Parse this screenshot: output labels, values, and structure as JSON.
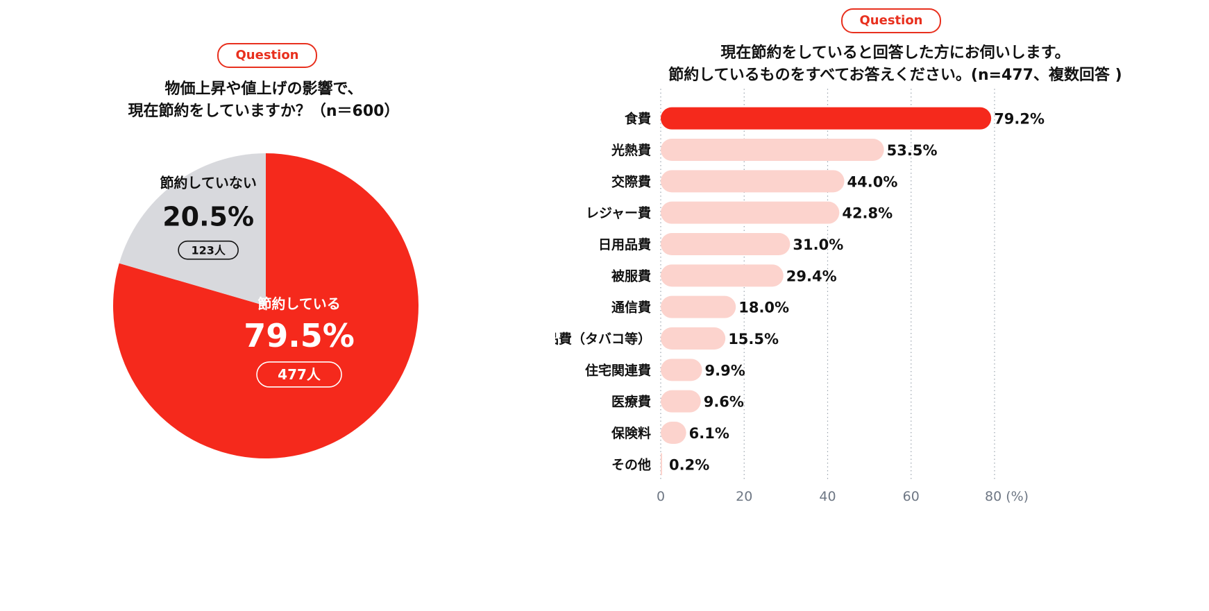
{
  "left": {
    "badge": "Question",
    "question_line1": "物価上昇や値上げの影響で、",
    "question_line2": "現在節約をしていますか？（n＝600）"
  },
  "right": {
    "badge": "Question",
    "question_line1": "現在節約をしていると回答した方にお伺いします。",
    "question_line2": "節約しているものをすべてお答えください。(n=477、複数回答 )"
  },
  "colors": {
    "accent": "#f5291c",
    "light_bar": "#fcd3cd",
    "gray_slice": "#d8d9dd",
    "grid": "#9aa3ad",
    "axis_text": "#6e7784"
  },
  "chart_data": [
    {
      "type": "pie",
      "slices": [
        {
          "label": "節約している",
          "value": 79.5,
          "value_label": "79.5%",
          "count_label": "477人",
          "color": "#f5291c"
        },
        {
          "label": "節約していない",
          "value": 20.5,
          "value_label": "20.5%",
          "count_label": "123人",
          "color": "#d8d9dd"
        }
      ]
    },
    {
      "type": "bar",
      "orientation": "horizontal",
      "categories": [
        "食費",
        "光熱費",
        "交際費",
        "レジャー費",
        "日用品費",
        "被服費",
        "通信費",
        "嗜好品費（タバコ等）",
        "住宅関連費",
        "医療費",
        "保険料",
        "その他"
      ],
      "values": [
        79.2,
        53.5,
        44.0,
        42.8,
        31.0,
        29.4,
        18.0,
        15.5,
        9.9,
        9.6,
        6.1,
        0.2
      ],
      "value_labels": [
        "79.2%",
        "53.5%",
        "44.0%",
        "42.8%",
        "31.0%",
        "29.4%",
        "18.0%",
        "15.5%",
        "9.9%",
        "9.6%",
        "6.1%",
        "0.2%"
      ],
      "xlim": [
        0,
        80
      ],
      "xticks": [
        "0",
        "20",
        "40",
        "60",
        "80 (%)"
      ],
      "grid": "vertical-dotted",
      "highlight_index": 0
    }
  ]
}
